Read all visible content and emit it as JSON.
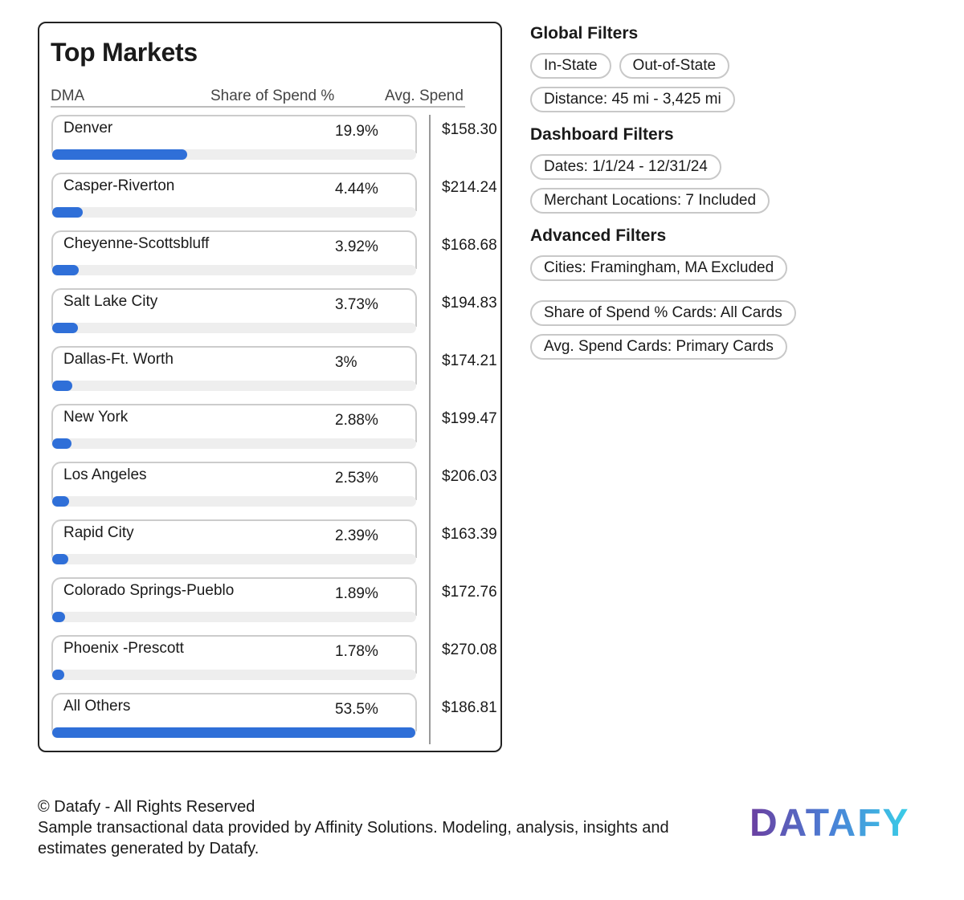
{
  "title": "Top Markets",
  "table": {
    "columns": [
      "DMA",
      "Share of Spend %",
      "Avg. Spend"
    ],
    "rows": [
      {
        "dma": "Denver",
        "share": 19.9,
        "share_label": "19.9%",
        "avg_spend": "$158.30"
      },
      {
        "dma": "Casper-Riverton",
        "share": 4.44,
        "share_label": "4.44%",
        "avg_spend": "$214.24"
      },
      {
        "dma": "Cheyenne-Scottsbluff",
        "share": 3.92,
        "share_label": "3.92%",
        "avg_spend": "$168.68"
      },
      {
        "dma": "Salt Lake City",
        "share": 3.73,
        "share_label": "3.73%",
        "avg_spend": "$194.83"
      },
      {
        "dma": "Dallas-Ft. Worth",
        "share": 3,
        "share_label": "3%",
        "avg_spend": "$174.21"
      },
      {
        "dma": "New York",
        "share": 2.88,
        "share_label": "2.88%",
        "avg_spend": "$199.47"
      },
      {
        "dma": "Los Angeles",
        "share": 2.53,
        "share_label": "2.53%",
        "avg_spend": "$206.03"
      },
      {
        "dma": "Rapid City",
        "share": 2.39,
        "share_label": "2.39%",
        "avg_spend": "$163.39"
      },
      {
        "dma": "Colorado Springs-Pueblo",
        "share": 1.89,
        "share_label": "1.89%",
        "avg_spend": "$172.76"
      },
      {
        "dma": "Phoenix -Prescott",
        "share": 1.78,
        "share_label": "1.78%",
        "avg_spend": "$270.08"
      },
      {
        "dma": "All Others",
        "share": 53.5,
        "share_label": "53.5%",
        "avg_spend": "$186.81"
      }
    ]
  },
  "filters": [
    {
      "heading": "Global Filters",
      "pills": [
        "In-State",
        "Out-of-State",
        "Distance: 45 mi - 3,425 mi"
      ]
    },
    {
      "heading": "Dashboard Filters",
      "pills": [
        "Dates: 1/1/24 - 12/31/24",
        "Merchant Locations: 7 Included"
      ]
    },
    {
      "heading": "Advanced Filters",
      "pills": [
        "Cities: Framingham, MA Excluded",
        "Share of Spend % Cards: All Cards",
        "Avg. Spend Cards: Primary Cards"
      ]
    }
  ],
  "footer": {
    "copyright": "© Datafy - All Rights Reserved",
    "note": "Sample transactional data provided by Affinity Solutions. Modeling, analysis, insights and estimates generated by Datafy."
  },
  "logo": "DATAFY"
}
